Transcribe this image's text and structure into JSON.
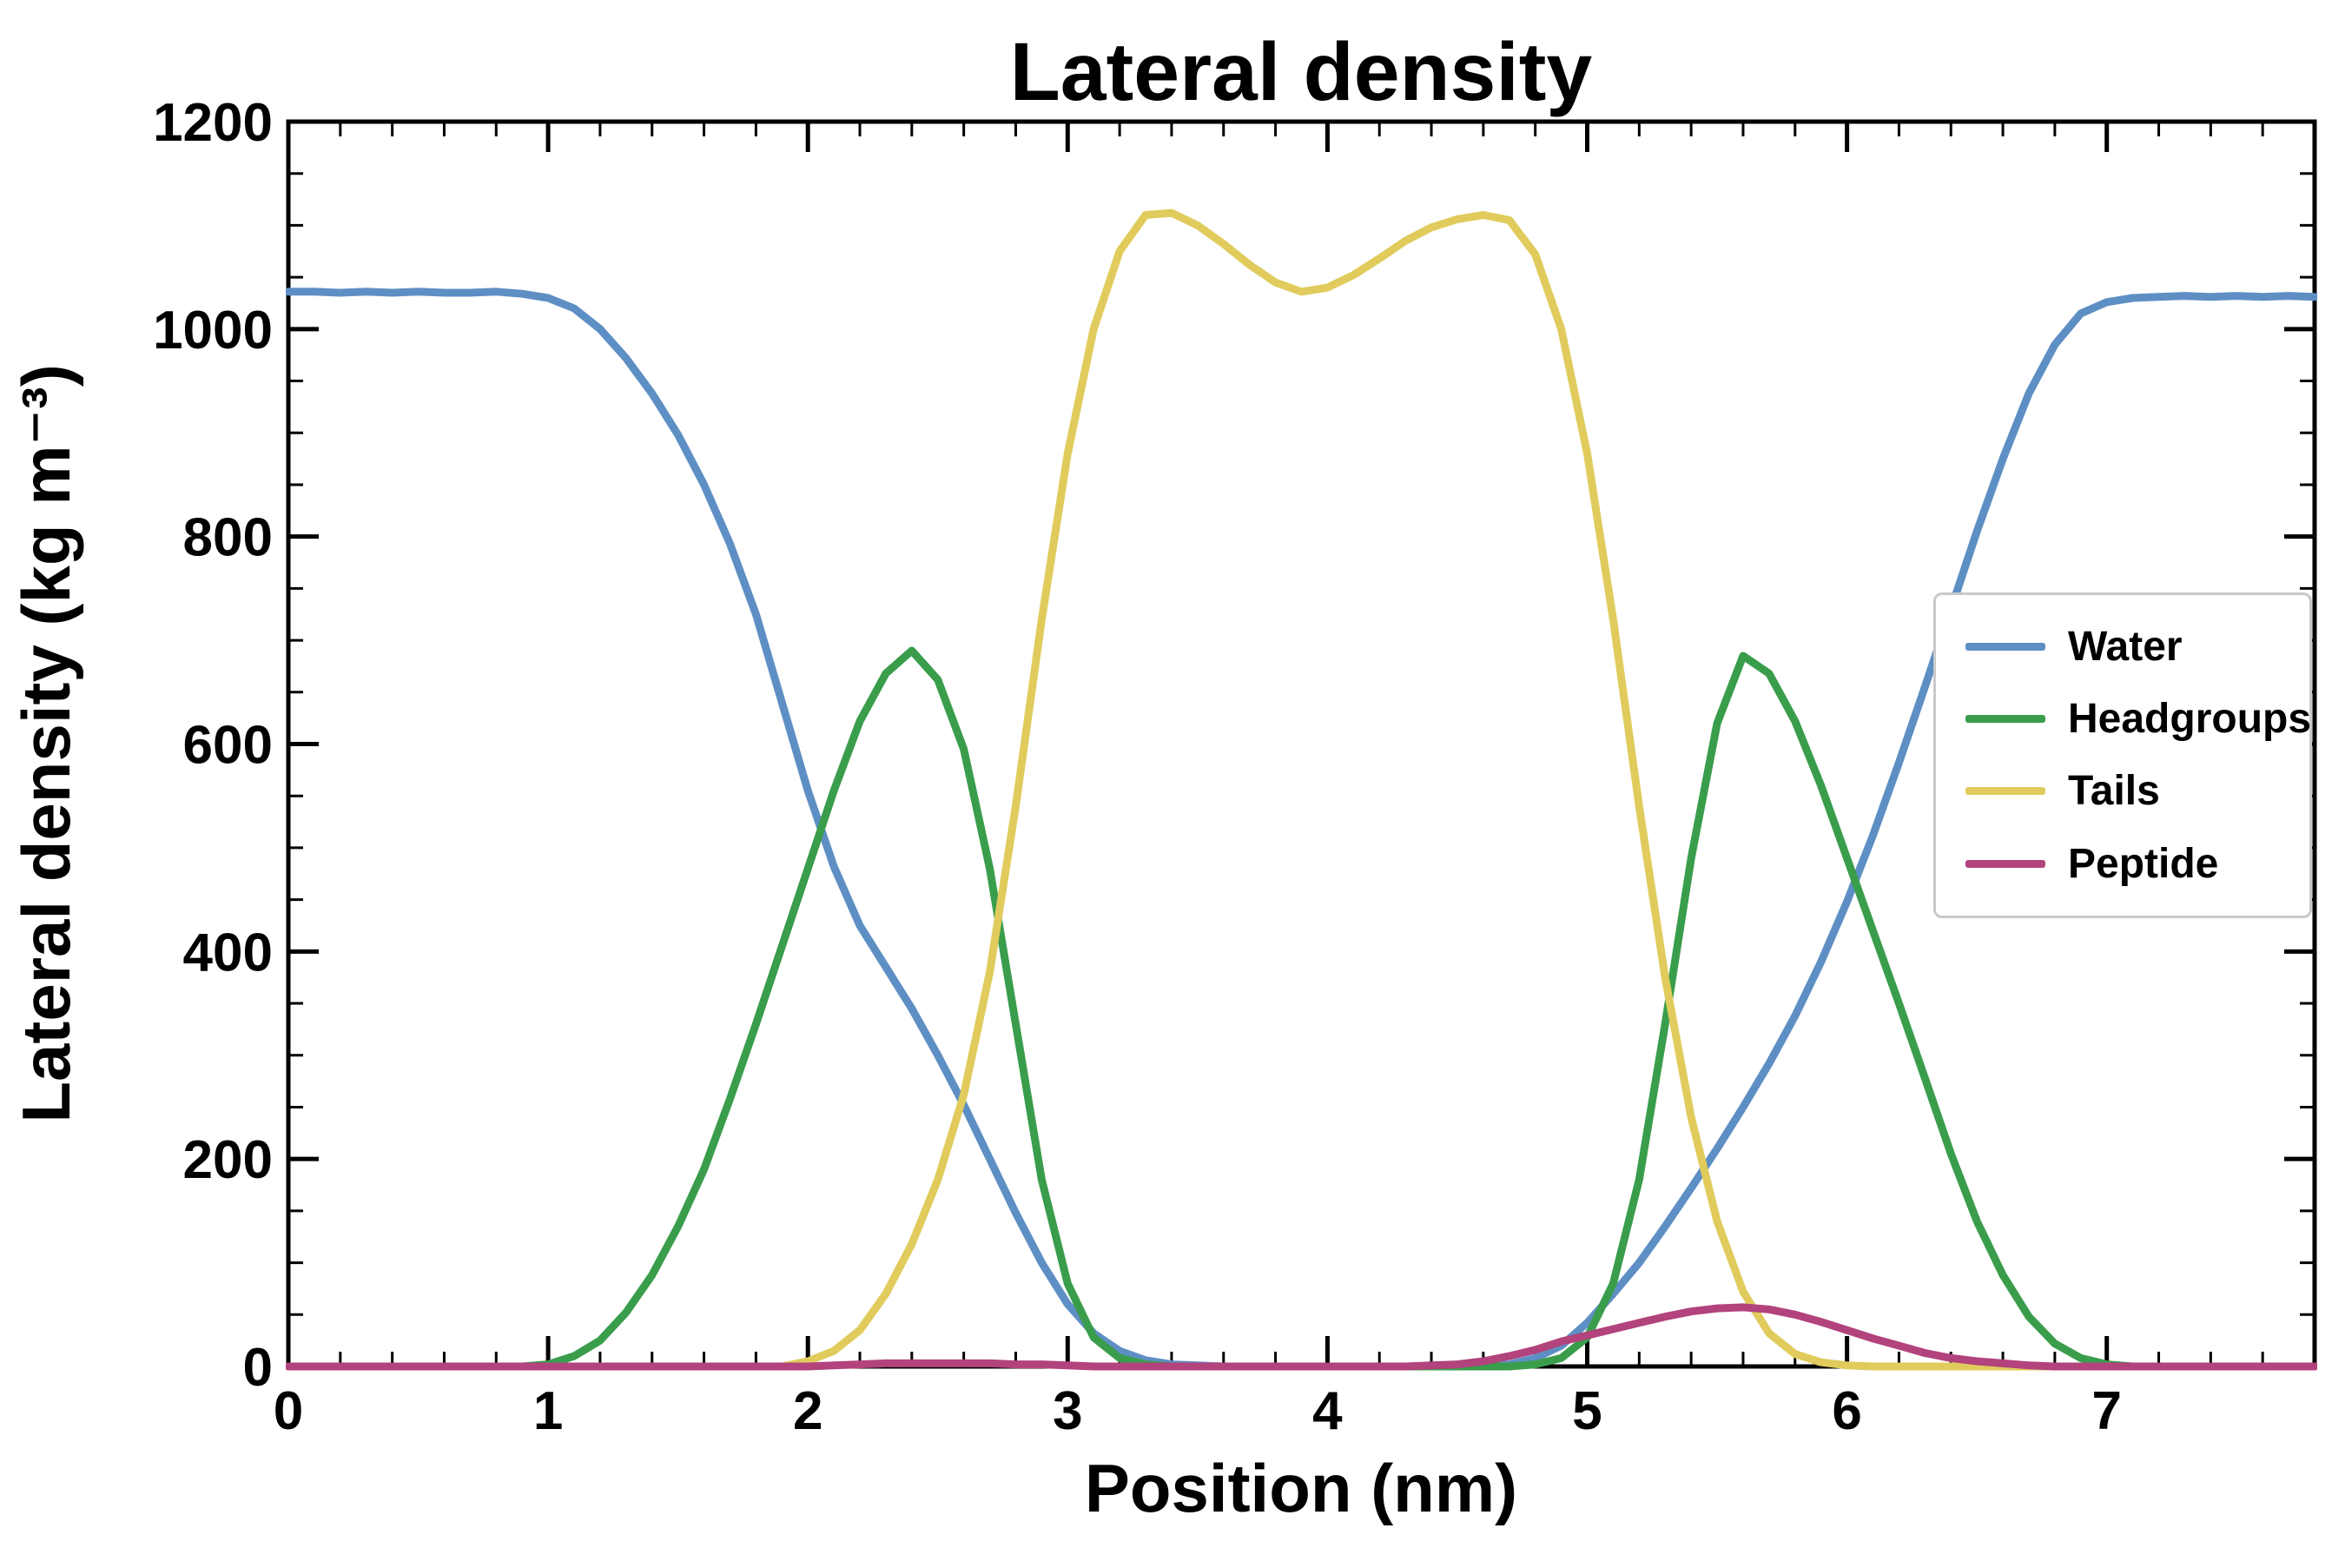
{
  "chart_data": {
    "type": "line",
    "title": "Lateral density",
    "xlabel": "Position (nm)",
    "ylabel": "Lateral density (kg m⁻³)",
    "xlim": [
      0,
      7.8
    ],
    "ylim": [
      0,
      1200
    ],
    "xticks": [
      0,
      1,
      2,
      3,
      4,
      5,
      6,
      7
    ],
    "yticks": [
      0,
      200,
      400,
      600,
      800,
      1000,
      1200
    ],
    "x_minor_step": 0.2,
    "y_minor_step": 50,
    "grid": false,
    "legend_position": "center right",
    "background_color": "#ffffff",
    "axis_color": "#000000",
    "x": [
      0,
      0.1,
      0.2,
      0.3,
      0.4,
      0.5,
      0.6,
      0.7,
      0.8,
      0.9,
      1,
      1.1,
      1.2,
      1.3,
      1.4,
      1.5,
      1.6,
      1.7,
      1.8,
      1.9,
      2,
      2.1,
      2.2,
      2.3,
      2.4,
      2.5,
      2.6,
      2.7,
      2.8,
      2.9,
      3,
      3.1,
      3.2,
      3.3,
      3.4,
      3.5,
      3.6,
      3.7,
      3.8,
      3.9,
      4,
      4.1,
      4.2,
      4.3,
      4.4,
      4.5,
      4.6,
      4.7,
      4.8,
      4.9,
      5,
      5.1,
      5.2,
      5.3,
      5.4,
      5.5,
      5.6,
      5.7,
      5.8,
      5.9,
      6,
      6.1,
      6.2,
      6.3,
      6.4,
      6.5,
      6.6,
      6.7,
      6.8,
      6.9,
      7,
      7.1,
      7.2,
      7.3,
      7.4,
      7.5,
      7.6,
      7.7,
      7.8
    ],
    "series": [
      {
        "name": "Water",
        "color": "#5E8FC4",
        "values": [
          1036,
          1036,
          1035,
          1036,
          1035,
          1036,
          1035,
          1035,
          1036,
          1034,
          1030,
          1020,
          1000,
          972,
          938,
          898,
          850,
          793,
          725,
          640,
          555,
          482,
          425,
          385,
          345,
          300,
          252,
          200,
          148,
          100,
          60,
          32,
          15,
          6,
          2,
          1,
          0,
          0,
          0,
          0,
          0,
          0,
          0,
          0,
          0,
          0,
          1,
          2,
          8,
          20,
          42,
          70,
          100,
          135,
          172,
          210,
          250,
          292,
          338,
          390,
          448,
          512,
          582,
          655,
          730,
          805,
          875,
          938,
          985,
          1015,
          1026,
          1030,
          1031,
          1032,
          1031,
          1032,
          1031,
          1032,
          1031
        ]
      },
      {
        "name": "Headgroups",
        "color": "#3A9D4B",
        "values": [
          0,
          0,
          0,
          0,
          0,
          0,
          0,
          0,
          0,
          0,
          2,
          10,
          25,
          52,
          88,
          135,
          190,
          258,
          330,
          405,
          480,
          555,
          622,
          668,
          690,
          662,
          595,
          480,
          330,
          180,
          80,
          28,
          8,
          2,
          0,
          0,
          0,
          0,
          0,
          0,
          0,
          0,
          0,
          0,
          0,
          0,
          0,
          0,
          2,
          8,
          28,
          80,
          180,
          330,
          490,
          620,
          685,
          668,
          622,
          560,
          490,
          420,
          350,
          278,
          205,
          140,
          88,
          48,
          22,
          8,
          2,
          0,
          0,
          0,
          0,
          0,
          0,
          0,
          0
        ]
      },
      {
        "name": "Tails",
        "color": "#E0CB5C",
        "values": [
          0,
          0,
          0,
          0,
          0,
          0,
          0,
          0,
          0,
          0,
          0,
          0,
          0,
          0,
          0,
          0,
          0,
          0,
          0,
          0,
          5,
          15,
          35,
          70,
          118,
          180,
          262,
          380,
          540,
          720,
          880,
          1000,
          1075,
          1110,
          1112,
          1100,
          1082,
          1062,
          1045,
          1036,
          1040,
          1052,
          1068,
          1085,
          1098,
          1106,
          1110,
          1105,
          1072,
          1000,
          880,
          720,
          540,
          375,
          240,
          140,
          72,
          32,
          12,
          4,
          1,
          0,
          0,
          0,
          0,
          0,
          0,
          0,
          0,
          0,
          0,
          0,
          0,
          0,
          0,
          0,
          0,
          0,
          0
        ]
      },
      {
        "name": "Peptide",
        "color": "#B2437C",
        "values": [
          0,
          0,
          0,
          0,
          0,
          0,
          0,
          0,
          0,
          0,
          0,
          0,
          0,
          0,
          0,
          0,
          0,
          0,
          0,
          0,
          0,
          1,
          2,
          3,
          3,
          3,
          3,
          3,
          2,
          2,
          1,
          0,
          0,
          0,
          0,
          0,
          0,
          0,
          0,
          0,
          0,
          0,
          0,
          0,
          1,
          2,
          5,
          10,
          16,
          24,
          30,
          36,
          42,
          48,
          53,
          56,
          57,
          55,
          50,
          43,
          35,
          27,
          20,
          13,
          8,
          5,
          3,
          1,
          0,
          0,
          0,
          0,
          0,
          0,
          0,
          0,
          0,
          0,
          0
        ]
      }
    ]
  }
}
